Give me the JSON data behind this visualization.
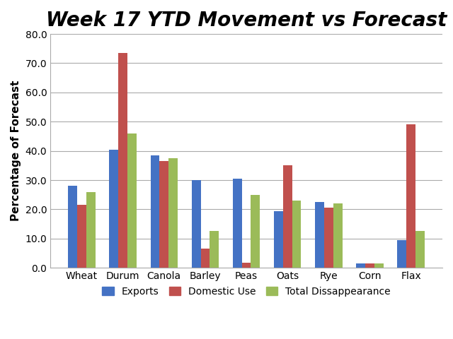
{
  "title": "Week 17 YTD Movement vs Forecast",
  "ylabel": "Percentage of Forecast",
  "categories": [
    "Wheat",
    "Durum",
    "Canola",
    "Barley",
    "Peas",
    "Oats",
    "Rye",
    "Corn",
    "Flax"
  ],
  "exports": [
    28.0,
    40.5,
    38.5,
    30.0,
    30.5,
    19.5,
    22.5,
    1.5,
    9.5
  ],
  "domestic_use": [
    21.5,
    73.5,
    36.5,
    6.5,
    1.8,
    35.0,
    20.5,
    1.5,
    49.0
  ],
  "total_disapp": [
    26.0,
    46.0,
    37.5,
    12.5,
    25.0,
    23.0,
    22.0,
    1.5,
    12.5
  ],
  "export_color": "#4472C4",
  "domestic_color": "#C0504D",
  "total_color": "#9BBB59",
  "ylim": [
    0,
    80.0
  ],
  "yticks": [
    0.0,
    10.0,
    20.0,
    30.0,
    40.0,
    50.0,
    60.0,
    70.0,
    80.0
  ],
  "legend_labels": [
    "Exports",
    "Domestic Use",
    "Total Dissappearance"
  ],
  "bg_color": "#FFFFFF",
  "grid_color": "#AAAAAA",
  "title_fontsize": 20,
  "axis_label_fontsize": 11,
  "tick_fontsize": 10,
  "legend_fontsize": 10,
  "bar_width": 0.22
}
